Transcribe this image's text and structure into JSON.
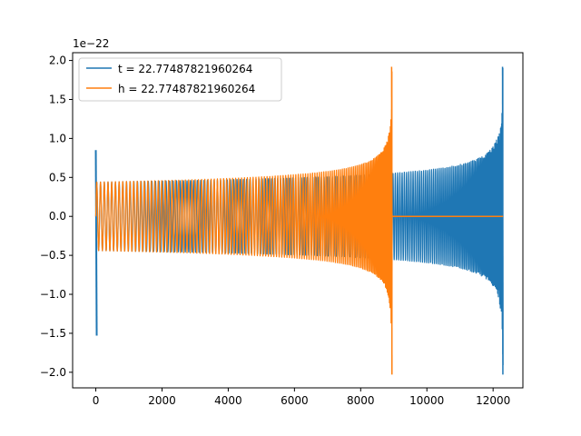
{
  "chart_data": {
    "type": "line",
    "title": "",
    "xlabel": "",
    "ylabel": "",
    "y_offset_label": "1e−22",
    "xlim": [
      -700,
      12900
    ],
    "ylim": [
      -2.2,
      2.1
    ],
    "x_ticks": [
      0,
      2000,
      4000,
      6000,
      8000,
      10000,
      12000
    ],
    "x_tick_labels": [
      "0",
      "2000",
      "4000",
      "6000",
      "8000",
      "10000",
      "12000"
    ],
    "y_ticks": [
      -2.0,
      -1.5,
      -1.0,
      -0.5,
      0.0,
      0.5,
      1.0,
      1.5,
      2.0
    ],
    "y_tick_labels": [
      "−2.0",
      "−1.5",
      "−1.0",
      "−0.5",
      "0.0",
      "0.5",
      "1.0",
      "1.5",
      "2.0"
    ],
    "grid": false,
    "legend_position": "top-left",
    "series": [
      {
        "name": "t = 22.77487821960264",
        "color": "#1f77b4",
        "glitch": {
          "x": 0,
          "max": 0.85,
          "min": -1.53
        },
        "envelope": {
          "start_x": 0,
          "end_x": 12300,
          "start_amplitude": 0.44,
          "peak_amplitude": 1.92,
          "min_at_peak": -2.03,
          "after_end": "flat at 0"
        }
      },
      {
        "name": "h = 22.77487821960264",
        "color": "#ff7f0e",
        "envelope": {
          "start_x": 0,
          "end_x": 8950,
          "start_amplitude": 0.44,
          "peak_amplitude": 1.92,
          "min_at_peak": -2.03,
          "after_end": "flat at 0 to 12300"
        }
      }
    ]
  }
}
